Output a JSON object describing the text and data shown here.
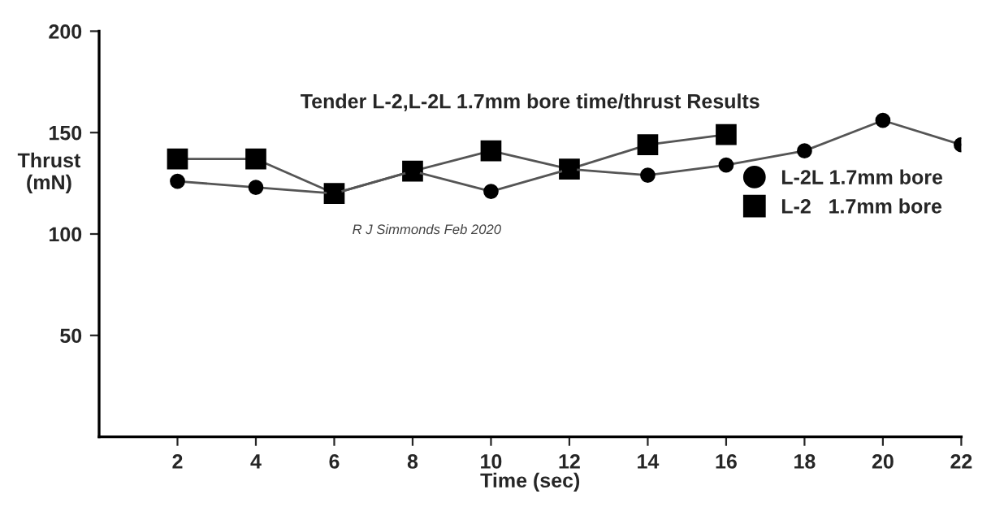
{
  "chart_data": {
    "type": "line",
    "title": "Tender L-2,L-2L 1.7mm bore time/thrust Results",
    "xlabel": "Time (sec)",
    "ylabel": "Thrust\n(mN)",
    "xlim": [
      0,
      22
    ],
    "xticks": [
      2,
      4,
      6,
      8,
      10,
      12,
      14,
      16,
      18,
      20,
      22
    ],
    "ylim": [
      0,
      200
    ],
    "yticks": [
      50,
      100,
      150,
      200
    ],
    "grid": false,
    "legend": "right",
    "annotations": [
      "R J Simmonds Feb 2020"
    ],
    "series": [
      {
        "name": "L-2L 1.7mm bore",
        "color": "#000000",
        "marker": "circle",
        "x": [
          2,
          4,
          6,
          8,
          10,
          12,
          14,
          16,
          18,
          20,
          22
        ],
        "values": [
          126,
          123,
          120,
          131,
          121,
          132,
          129,
          134,
          141,
          156,
          144
        ]
      },
      {
        "name": "L-2   1.7mm bore",
        "color": "#000000",
        "marker": "square",
        "x": [
          2,
          4,
          6,
          8,
          10,
          12,
          14,
          16
        ],
        "values": [
          137,
          137,
          120,
          131,
          141,
          132,
          144,
          149
        ]
      }
    ]
  }
}
